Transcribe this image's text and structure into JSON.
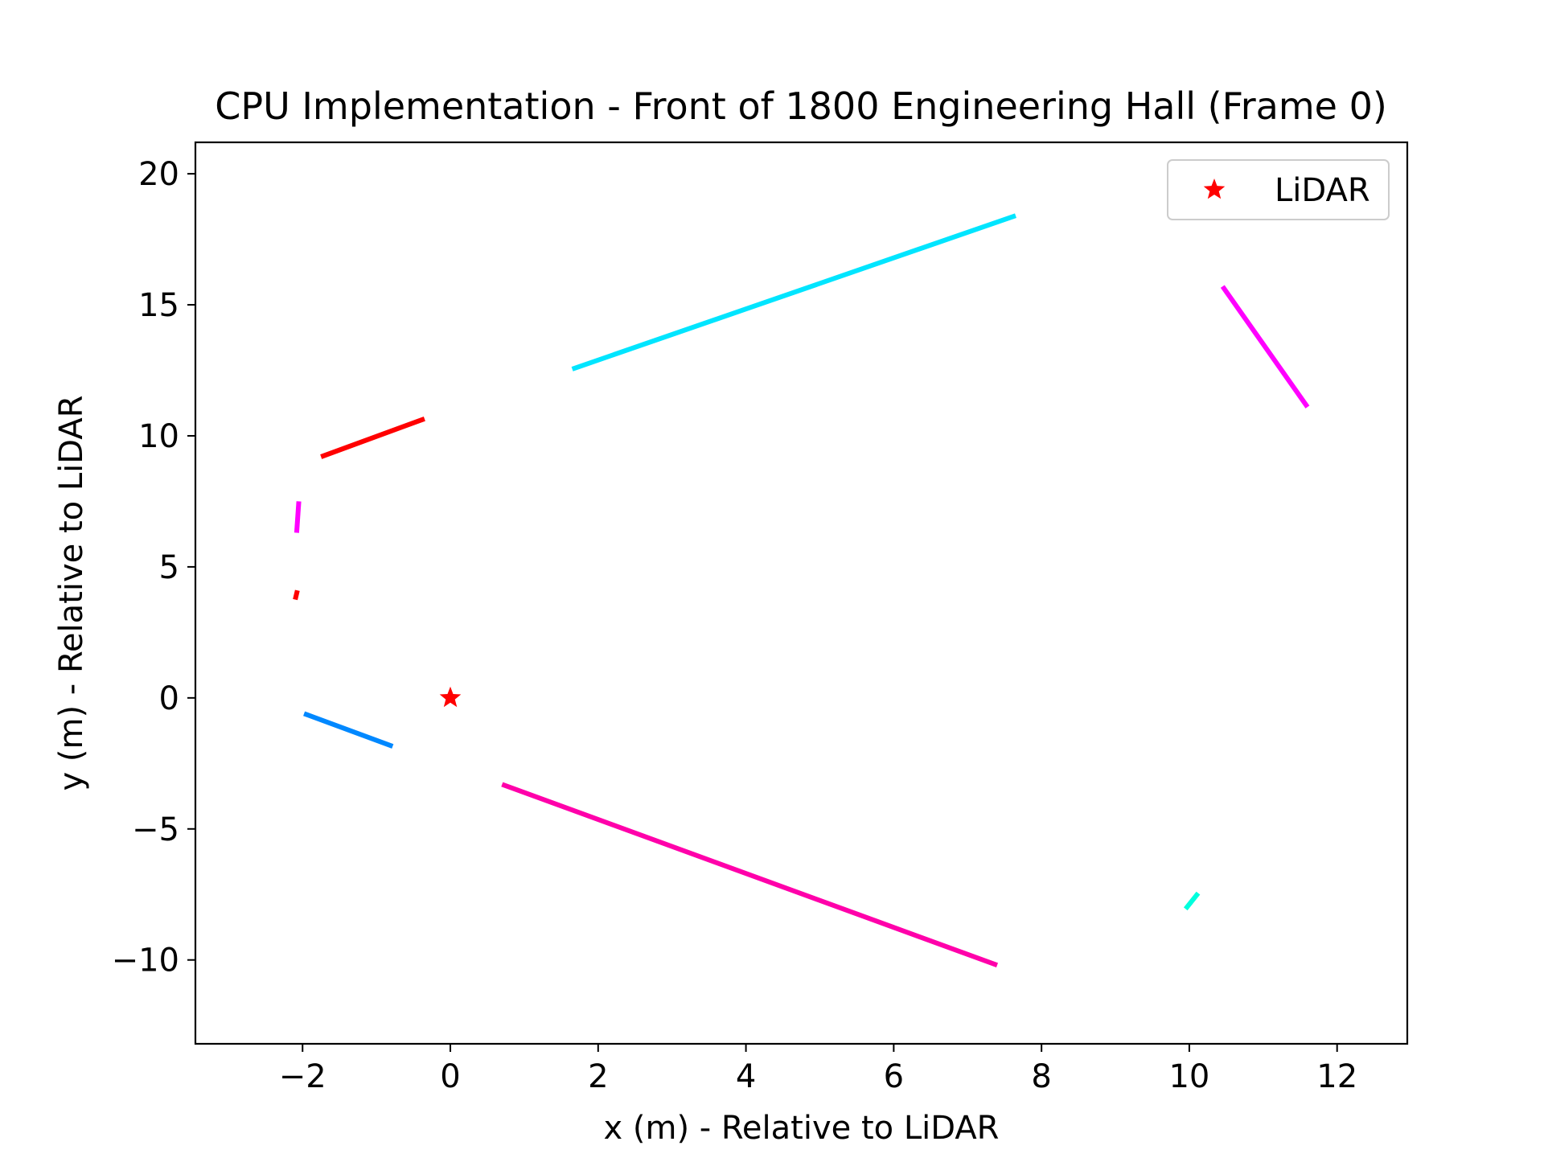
{
  "chart_data": {
    "type": "line",
    "title": "CPU Implementation - Front of 1800 Engineering Hall (Frame 0)",
    "xlabel": "x (m) - Relative to LiDAR",
    "ylabel": "y (m) - Relative to LiDAR",
    "xlim": [
      -3.45,
      12.95
    ],
    "ylim": [
      -13.2,
      21.2
    ],
    "xticks": [
      -2,
      0,
      2,
      4,
      6,
      8,
      10,
      12
    ],
    "yticks": [
      -10,
      -5,
      0,
      5,
      10,
      15,
      20
    ],
    "xtick_labels": [
      "−2",
      "0",
      "2",
      "4",
      "6",
      "8",
      "10",
      "12"
    ],
    "ytick_labels": [
      "−10",
      "−5",
      "0",
      "5",
      "10",
      "15",
      "20"
    ],
    "grid": false,
    "legend": {
      "position": "top-right",
      "entries": [
        "LiDAR"
      ]
    },
    "segments": [
      {
        "color": "#00e5ff",
        "x": [
          1.65,
          7.65
        ],
        "y": [
          12.55,
          18.4
        ]
      },
      {
        "color": "#ff00ff",
        "x": [
          10.45,
          11.6
        ],
        "y": [
          15.7,
          11.1
        ]
      },
      {
        "color": "#ff0000",
        "x": [
          -1.75,
          -0.35
        ],
        "y": [
          9.2,
          10.65
        ]
      },
      {
        "color": "#ff00ff",
        "x": [
          -2.05,
          -2.08
        ],
        "y": [
          7.5,
          6.3
        ]
      },
      {
        "color": "#ff0000",
        "x": [
          -2.07,
          -2.1
        ],
        "y": [
          4.1,
          3.75
        ]
      },
      {
        "color": "#0088ff",
        "x": [
          -1.98,
          -0.78
        ],
        "y": [
          -0.6,
          -1.85
        ]
      },
      {
        "color": "#ff00aa",
        "x": [
          0.7,
          7.4
        ],
        "y": [
          -3.3,
          -10.2
        ]
      },
      {
        "color": "#00ffdd",
        "x": [
          10.12,
          9.95
        ],
        "y": [
          -7.45,
          -8.05
        ]
      }
    ],
    "markers": [
      {
        "name": "LiDAR",
        "x": 0,
        "y": 0,
        "color": "#ff0000",
        "symbol": "star"
      }
    ]
  }
}
